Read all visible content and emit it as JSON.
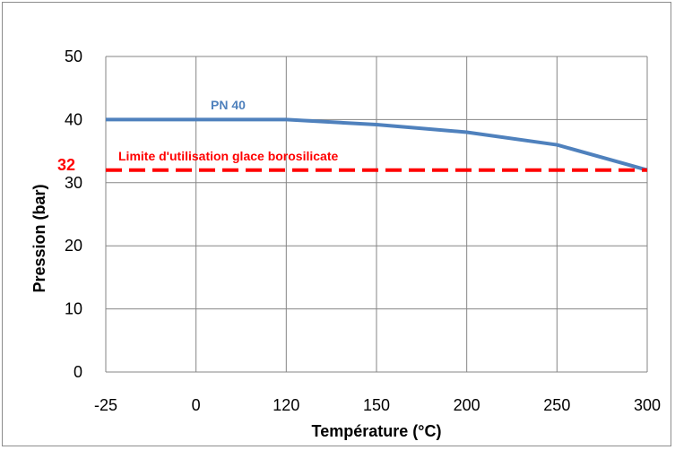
{
  "chart_data": {
    "type": "line",
    "title": "",
    "xlabel": "Température (°C)",
    "ylabel": "Pression (bar)",
    "categories": [
      "-25",
      "0",
      "120",
      "150",
      "200",
      "250",
      "300"
    ],
    "ylim": [
      0,
      50
    ],
    "yticks": [
      "0",
      "10",
      "20",
      "30",
      "40",
      "50"
    ],
    "grid": true,
    "series": [
      {
        "name": "PN 40",
        "values": [
          40,
          40,
          40,
          39.2,
          38,
          36,
          32
        ],
        "color": "#4f81bd",
        "style": "solid"
      },
      {
        "name": "Limite d'utilisation glace borosilicate",
        "values": [
          32,
          32,
          32,
          32,
          32,
          32,
          32
        ],
        "color": "#ff0000",
        "style": "dashed"
      }
    ],
    "annotations": [
      {
        "text": "32",
        "y": 32,
        "color": "#ff0000"
      }
    ]
  }
}
